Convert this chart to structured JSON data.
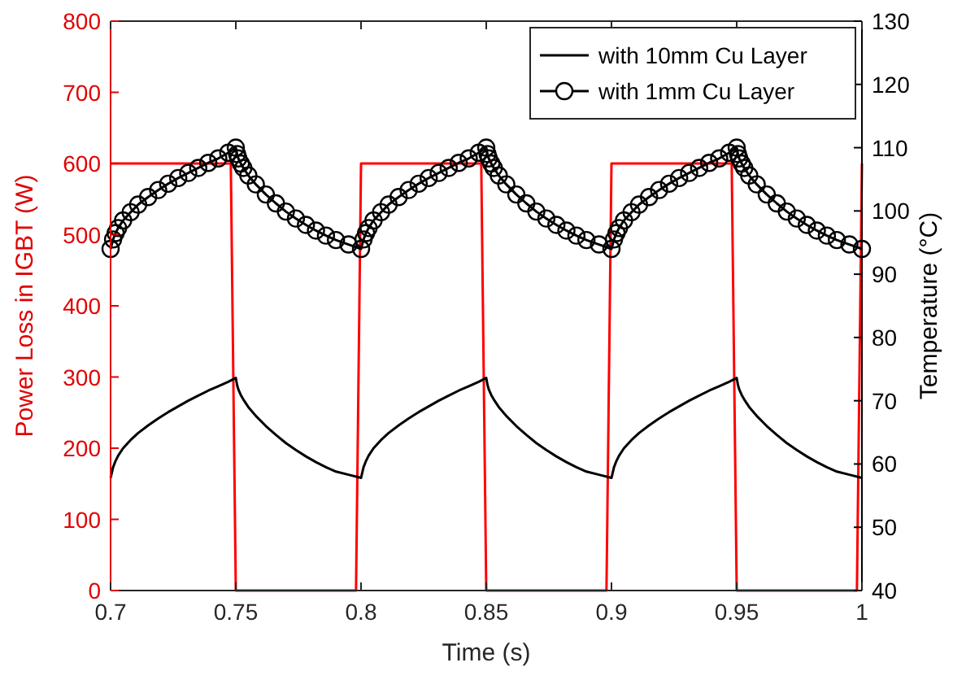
{
  "chart_data": {
    "type": "line",
    "xlabel": "Time (s)",
    "ylabel": "Power Loss in IGBT (W)",
    "y2label": "Temperature (°C)",
    "xlim": [
      0.7,
      1
    ],
    "xticks": [
      0.7,
      0.75,
      0.8,
      0.85,
      0.9,
      0.95,
      1
    ],
    "ylim": [
      0,
      800
    ],
    "yticks": [
      0,
      100,
      200,
      300,
      400,
      500,
      600,
      700,
      800
    ],
    "y2lim": [
      40,
      130
    ],
    "y2ticks": [
      40,
      50,
      60,
      70,
      80,
      90,
      100,
      110,
      120,
      130
    ],
    "grid": false,
    "legend": "top right",
    "series": [
      {
        "color": "#ff0000",
        "axis": "y",
        "marker": "none",
        "x": [
          0.7,
          0.748,
          0.75,
          0.798,
          0.8,
          0.848,
          0.85,
          0.898,
          0.9,
          0.948,
          0.95,
          0.998,
          1.0
        ],
        "values": [
          600,
          600,
          0,
          0,
          600,
          600,
          0,
          0,
          600,
          600,
          0,
          0,
          600
        ]
      },
      {
        "name": "with 10mm Cu Layer",
        "color": "#000000",
        "axis": "y2",
        "marker": "none",
        "x": [
          0.7,
          0.701,
          0.702,
          0.703,
          0.705,
          0.708,
          0.711,
          0.715,
          0.719,
          0.723,
          0.727,
          0.731,
          0.735,
          0.739,
          0.743,
          0.747,
          0.75,
          0.7505,
          0.751,
          0.752,
          0.753,
          0.755,
          0.758,
          0.762,
          0.766,
          0.77,
          0.774,
          0.778,
          0.782,
          0.786,
          0.79,
          0.795,
          0.8,
          0.801,
          0.802,
          0.803,
          0.805,
          0.808,
          0.811,
          0.815,
          0.819,
          0.823,
          0.827,
          0.831,
          0.835,
          0.839,
          0.843,
          0.847,
          0.85,
          0.8505,
          0.851,
          0.852,
          0.853,
          0.855,
          0.858,
          0.862,
          0.866,
          0.87,
          0.874,
          0.878,
          0.882,
          0.886,
          0.89,
          0.895,
          0.9,
          0.901,
          0.902,
          0.903,
          0.905,
          0.908,
          0.911,
          0.915,
          0.919,
          0.923,
          0.927,
          0.931,
          0.935,
          0.939,
          0.943,
          0.947,
          0.95,
          0.9505,
          0.951,
          0.952,
          0.953,
          0.955,
          0.958,
          0.962,
          0.966,
          0.97,
          0.974,
          0.978,
          0.982,
          0.986,
          0.99,
          0.995,
          1.0
        ],
        "values": [
          57.8,
          59.5,
          60.5,
          61.3,
          62.5,
          63.8,
          64.9,
          66.1,
          67.2,
          68.2,
          69.1,
          70,
          70.8,
          71.6,
          72.3,
          73,
          73.6,
          72.5,
          71.8,
          70.9,
          70.2,
          69,
          67.6,
          66,
          64.6,
          63.3,
          62.2,
          61.2,
          60.3,
          59.5,
          58.8,
          58.3,
          57.8,
          59.5,
          60.5,
          61.3,
          62.5,
          63.8,
          64.9,
          66.1,
          67.2,
          68.2,
          69.1,
          70,
          70.8,
          71.6,
          72.3,
          73,
          73.6,
          72.5,
          71.8,
          70.9,
          70.2,
          69,
          67.6,
          66,
          64.6,
          63.3,
          62.2,
          61.2,
          60.3,
          59.5,
          58.8,
          58.3,
          57.8,
          59.5,
          60.5,
          61.3,
          62.5,
          63.8,
          64.9,
          66.1,
          67.2,
          68.2,
          69.1,
          70,
          70.8,
          71.6,
          72.3,
          73,
          73.6,
          72.5,
          71.8,
          70.9,
          70.2,
          69,
          67.6,
          66,
          64.6,
          63.3,
          62.2,
          61.2,
          60.3,
          59.5,
          58.8,
          58.3,
          57.8
        ]
      },
      {
        "name": "with 1mm Cu Layer",
        "color": "#000000",
        "axis": "y2",
        "marker": "circle",
        "x": [
          0.7,
          0.701,
          0.702,
          0.703,
          0.705,
          0.708,
          0.711,
          0.715,
          0.719,
          0.723,
          0.727,
          0.731,
          0.735,
          0.739,
          0.743,
          0.747,
          0.75,
          0.7505,
          0.751,
          0.752,
          0.753,
          0.755,
          0.758,
          0.762,
          0.766,
          0.77,
          0.774,
          0.778,
          0.782,
          0.786,
          0.79,
          0.795,
          0.8,
          0.801,
          0.802,
          0.803,
          0.805,
          0.808,
          0.811,
          0.815,
          0.819,
          0.823,
          0.827,
          0.831,
          0.835,
          0.839,
          0.843,
          0.847,
          0.85,
          0.8505,
          0.851,
          0.852,
          0.853,
          0.855,
          0.858,
          0.862,
          0.866,
          0.87,
          0.874,
          0.878,
          0.882,
          0.886,
          0.89,
          0.895,
          0.9,
          0.901,
          0.902,
          0.903,
          0.905,
          0.908,
          0.911,
          0.915,
          0.919,
          0.923,
          0.927,
          0.931,
          0.935,
          0.939,
          0.943,
          0.947,
          0.95,
          0.9505,
          0.951,
          0.952,
          0.953,
          0.955,
          0.958,
          0.962,
          0.966,
          0.97,
          0.974,
          0.978,
          0.982,
          0.986,
          0.99,
          0.995,
          1.0
        ],
        "values": [
          94,
          95.5,
          96.5,
          97.3,
          98.5,
          99.8,
          101,
          102.2,
          103.3,
          104.3,
          105.2,
          106,
          106.8,
          107.6,
          108.3,
          109.2,
          110,
          109,
          108.3,
          107.5,
          106.8,
          105.6,
          104.2,
          102.6,
          101.2,
          99.9,
          98.8,
          97.8,
          96.9,
          96.1,
          95.4,
          94.7,
          94,
          95.5,
          96.5,
          97.3,
          98.5,
          99.8,
          101,
          102.2,
          103.3,
          104.3,
          105.2,
          106,
          106.8,
          107.6,
          108.3,
          109.2,
          110,
          109,
          108.3,
          107.5,
          106.8,
          105.6,
          104.2,
          102.6,
          101.2,
          99.9,
          98.8,
          97.8,
          96.9,
          96.1,
          95.4,
          94.7,
          94,
          95.5,
          96.5,
          97.3,
          98.5,
          99.8,
          101,
          102.2,
          103.3,
          104.3,
          105.2,
          106,
          106.8,
          107.6,
          108.3,
          109.2,
          110,
          109,
          108.3,
          107.5,
          106.8,
          105.6,
          104.2,
          102.6,
          101.2,
          99.9,
          98.8,
          97.8,
          96.9,
          96.1,
          95.4,
          94.7,
          94
        ]
      }
    ]
  }
}
